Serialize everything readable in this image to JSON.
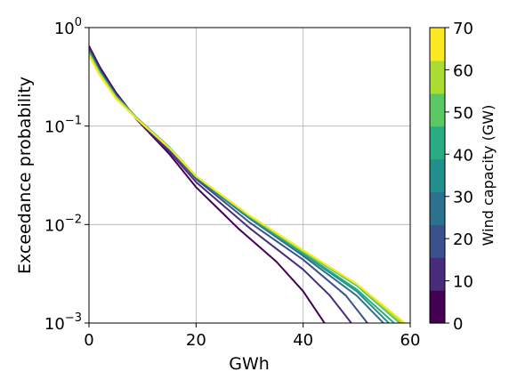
{
  "chart_data": {
    "type": "line",
    "xlabel": "GWh",
    "ylabel": "Exceedance probability",
    "xlim": [
      0,
      60
    ],
    "ylim": [
      0.001,
      1
    ],
    "yscale": "log",
    "grid": true,
    "x_ticks": [
      0,
      20,
      40,
      60
    ],
    "y_ticks": [
      {
        "value": 0.001,
        "base": "10",
        "exp": "−3"
      },
      {
        "value": 0.01,
        "base": "10",
        "exp": "−2"
      },
      {
        "value": 0.1,
        "base": "10",
        "exp": "−1"
      },
      {
        "value": 1,
        "base": "10",
        "exp": "0"
      }
    ],
    "colorbar": {
      "label": "Wind capacity (GW)",
      "ticks": [
        0,
        10,
        20,
        30,
        40,
        50,
        60,
        70
      ],
      "range": [
        0,
        70
      ],
      "colors": [
        "#440154",
        "#472c7a",
        "#3b518b",
        "#2c718e",
        "#21908d",
        "#27ad81",
        "#5cc863",
        "#aadc32",
        "#fde725"
      ]
    },
    "series": [
      {
        "color": "#440154",
        "x": [
          0,
          2,
          5,
          9,
          15,
          20,
          28,
          35,
          40,
          44
        ],
        "y": [
          0.65,
          0.4,
          0.22,
          0.115,
          0.052,
          0.024,
          0.009,
          0.0042,
          0.0021,
          0.001
        ]
      },
      {
        "color": "#472c7a",
        "x": [
          0,
          2,
          5,
          9,
          15,
          20,
          30,
          40,
          45,
          49
        ],
        "y": [
          0.62,
          0.38,
          0.21,
          0.115,
          0.055,
          0.027,
          0.0092,
          0.0035,
          0.0019,
          0.001
        ]
      },
      {
        "color": "#3b518b",
        "x": [
          0,
          2,
          5,
          9,
          15,
          20,
          30,
          40,
          48,
          52
        ],
        "y": [
          0.6,
          0.37,
          0.21,
          0.118,
          0.058,
          0.029,
          0.0105,
          0.0044,
          0.0019,
          0.001
        ]
      },
      {
        "color": "#2c718e",
        "x": [
          0,
          2,
          5,
          9,
          15,
          20,
          30,
          40,
          50,
          55
        ],
        "y": [
          0.58,
          0.36,
          0.205,
          0.12,
          0.06,
          0.03,
          0.0115,
          0.0048,
          0.0019,
          0.001
        ]
      },
      {
        "color": "#21908d",
        "x": [
          0,
          2,
          5,
          9,
          15,
          20,
          30,
          40,
          50,
          56
        ],
        "y": [
          0.57,
          0.355,
          0.2,
          0.12,
          0.061,
          0.0305,
          0.0118,
          0.005,
          0.0021,
          0.001
        ]
      },
      {
        "color": "#27ad81",
        "x": [
          0,
          2,
          5,
          9,
          15,
          20,
          30,
          40,
          50,
          57
        ],
        "y": [
          0.56,
          0.35,
          0.2,
          0.12,
          0.061,
          0.031,
          0.012,
          0.0051,
          0.0022,
          0.001
        ]
      },
      {
        "color": "#5cc863",
        "x": [
          0,
          2,
          5,
          9,
          15,
          20,
          30,
          40,
          50,
          58
        ],
        "y": [
          0.55,
          0.345,
          0.2,
          0.12,
          0.061,
          0.031,
          0.0122,
          0.0053,
          0.0024,
          0.001
        ]
      },
      {
        "color": "#aadc32",
        "x": [
          0,
          2,
          5,
          9,
          15,
          20,
          30,
          40,
          50,
          58.5
        ],
        "y": [
          0.54,
          0.34,
          0.195,
          0.118,
          0.06,
          0.031,
          0.0123,
          0.0054,
          0.0025,
          0.001
        ]
      },
      {
        "color": "#fde725",
        "x": [
          0,
          2,
          5,
          9,
          15,
          20,
          30,
          40,
          50,
          59
        ],
        "y": [
          0.52,
          0.33,
          0.19,
          0.117,
          0.06,
          0.031,
          0.0124,
          0.0055,
          0.0025,
          0.001
        ]
      }
    ]
  }
}
